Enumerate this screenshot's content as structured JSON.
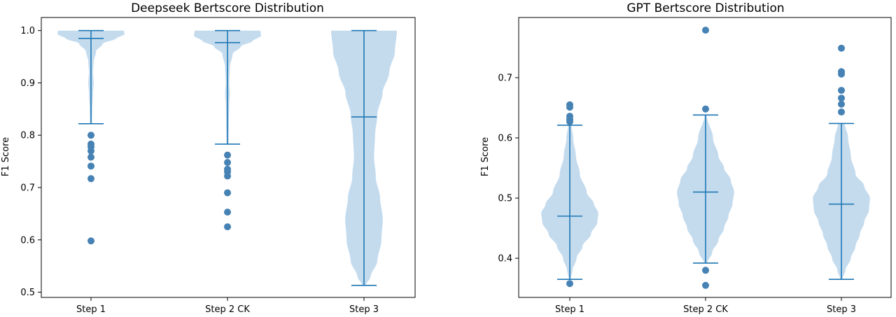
{
  "colors": {
    "violin_fill": "#c4dbee",
    "line": "#1f77b4",
    "outlier": "#4682b4",
    "axes": "#000000"
  },
  "chart_data": [
    {
      "type": "violin",
      "title": "Deepseek Bertscore Distribution",
      "xlabel": "",
      "ylabel": "F1 Score",
      "categories": [
        "Step 1",
        "Step 2 CK",
        "Step 3"
      ],
      "ylim": [
        0.49,
        1.025
      ],
      "yticks": [
        0.5,
        0.6,
        0.7,
        0.8,
        0.9,
        1.0
      ],
      "ytick_labels": [
        "0.5",
        "0.6",
        "0.7",
        "0.8",
        "0.9",
        "1.0"
      ],
      "grid": false,
      "violins": [
        {
          "name": "Step 1",
          "min": 0.822,
          "max": 1.0,
          "median": 0.985,
          "density": [
            [
              0.822,
              0.03
            ],
            [
              0.85,
              0.04
            ],
            [
              0.88,
              0.06
            ],
            [
              0.9,
              0.08
            ],
            [
              0.92,
              0.06
            ],
            [
              0.94,
              0.08
            ],
            [
              0.96,
              0.15
            ],
            [
              0.975,
              0.35
            ],
            [
              0.985,
              0.75
            ],
            [
              0.993,
              1.0
            ],
            [
              1.0,
              0.98
            ]
          ],
          "outliers": [
            0.8,
            0.783,
            0.778,
            0.77,
            0.758,
            0.741,
            0.717,
            0.598
          ]
        },
        {
          "name": "Step 2 CK",
          "min": 0.783,
          "max": 1.0,
          "median": 0.977,
          "density": [
            [
              0.783,
              0.03
            ],
            [
              0.82,
              0.04
            ],
            [
              0.86,
              0.05
            ],
            [
              0.88,
              0.07
            ],
            [
              0.9,
              0.05
            ],
            [
              0.93,
              0.07
            ],
            [
              0.955,
              0.15
            ],
            [
              0.97,
              0.4
            ],
            [
              0.98,
              0.75
            ],
            [
              0.99,
              1.0
            ],
            [
              1.0,
              0.98
            ]
          ],
          "outliers": [
            0.762,
            0.748,
            0.735,
            0.73,
            0.722,
            0.69,
            0.653,
            0.625
          ]
        },
        {
          "name": "Step 3",
          "min": 0.513,
          "max": 1.0,
          "median": 0.835,
          "density": [
            [
              0.513,
              0.05
            ],
            [
              0.53,
              0.2
            ],
            [
              0.56,
              0.4
            ],
            [
              0.6,
              0.52
            ],
            [
              0.64,
              0.56
            ],
            [
              0.68,
              0.48
            ],
            [
              0.72,
              0.35
            ],
            [
              0.76,
              0.3
            ],
            [
              0.8,
              0.33
            ],
            [
              0.84,
              0.4
            ],
            [
              0.88,
              0.55
            ],
            [
              0.92,
              0.75
            ],
            [
              0.96,
              0.92
            ],
            [
              1.0,
              0.98
            ]
          ],
          "outliers": []
        }
      ]
    },
    {
      "type": "violin",
      "title": "GPT Bertscore Distribution",
      "xlabel": "",
      "ylabel": "F1 Score",
      "categories": [
        "Step 1",
        "Step 2 CK",
        "Step 3"
      ],
      "ylim": [
        0.335,
        0.8
      ],
      "yticks": [
        0.4,
        0.5,
        0.6,
        0.7
      ],
      "ytick_labels": [
        "0.4",
        "0.5",
        "0.6",
        "0.7"
      ],
      "grid": false,
      "violins": [
        {
          "name": "Step 1",
          "min": 0.365,
          "max": 0.621,
          "median": 0.47,
          "density": [
            [
              0.365,
              0.03
            ],
            [
              0.38,
              0.08
            ],
            [
              0.4,
              0.2
            ],
            [
              0.42,
              0.38
            ],
            [
              0.44,
              0.63
            ],
            [
              0.46,
              0.82
            ],
            [
              0.475,
              0.85
            ],
            [
              0.49,
              0.72
            ],
            [
              0.51,
              0.5
            ],
            [
              0.54,
              0.3
            ],
            [
              0.57,
              0.18
            ],
            [
              0.6,
              0.1
            ],
            [
              0.621,
              0.05
            ]
          ],
          "outliers": [
            0.655,
            0.651,
            0.636,
            0.631,
            0.627,
            0.358
          ]
        },
        {
          "name": "Step 2 CK",
          "min": 0.392,
          "max": 0.638,
          "median": 0.51,
          "density": [
            [
              0.392,
              0.05
            ],
            [
              0.41,
              0.2
            ],
            [
              0.43,
              0.38
            ],
            [
              0.45,
              0.55
            ],
            [
              0.47,
              0.68
            ],
            [
              0.49,
              0.8
            ],
            [
              0.51,
              0.85
            ],
            [
              0.53,
              0.75
            ],
            [
              0.55,
              0.55
            ],
            [
              0.57,
              0.38
            ],
            [
              0.6,
              0.22
            ],
            [
              0.638,
              0.03
            ]
          ],
          "outliers": [
            0.779,
            0.648,
            0.38,
            0.355
          ]
        },
        {
          "name": "Step 3",
          "min": 0.365,
          "max": 0.624,
          "median": 0.49,
          "density": [
            [
              0.365,
              0.03
            ],
            [
              0.38,
              0.12
            ],
            [
              0.4,
              0.28
            ],
            [
              0.42,
              0.42
            ],
            [
              0.44,
              0.55
            ],
            [
              0.46,
              0.68
            ],
            [
              0.48,
              0.82
            ],
            [
              0.5,
              0.85
            ],
            [
              0.52,
              0.68
            ],
            [
              0.54,
              0.42
            ],
            [
              0.57,
              0.28
            ],
            [
              0.6,
              0.2
            ],
            [
              0.624,
              0.1
            ]
          ],
          "outliers": [
            0.749,
            0.71,
            0.706,
            0.679,
            0.666,
            0.656,
            0.643
          ]
        }
      ]
    }
  ]
}
